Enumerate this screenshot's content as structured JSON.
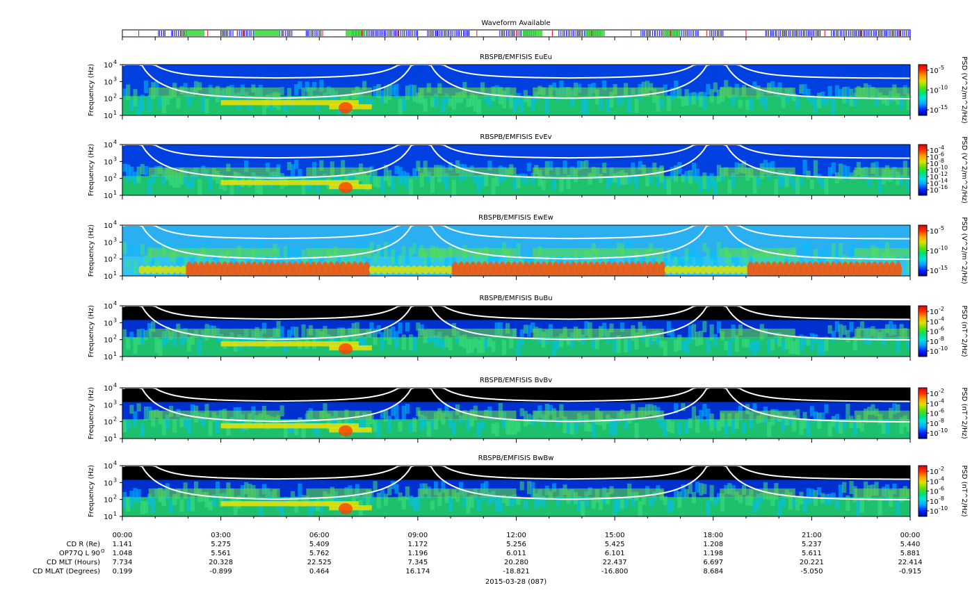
{
  "waveform": {
    "title": "Waveform Available",
    "colors": {
      "burst": "#0000ff",
      "survey": "#33dd33",
      "marker": "#ff0000"
    },
    "blue_segments_hours": [
      [
        1.1,
        1.3
      ],
      [
        1.5,
        2.0
      ],
      [
        3.0,
        3.4
      ],
      [
        3.5,
        4.0
      ],
      [
        4.8,
        5.2
      ],
      [
        5.6,
        6.1
      ],
      [
        7.0,
        9.0
      ],
      [
        9.3,
        10.6
      ],
      [
        11.5,
        12.6
      ],
      [
        13.3,
        14.6
      ],
      [
        15.8,
        17.6
      ],
      [
        17.9,
        18.3
      ],
      [
        19.6,
        21.3
      ],
      [
        21.6,
        24.0
      ]
    ],
    "green_segments_hours": [
      [
        1.9,
        2.5
      ],
      [
        4.0,
        4.8
      ],
      [
        6.8,
        7.4
      ],
      [
        12.2,
        12.8
      ],
      [
        14.1,
        14.7
      ],
      [
        16.5,
        17.0
      ]
    ],
    "marker_hours": [
      0.5,
      1.6,
      2.6,
      3.7,
      4.9,
      6.1,
      7.3,
      8.4,
      9.6,
      10.8,
      12.0,
      13.1,
      14.3,
      15.5,
      16.7,
      17.8,
      19.0,
      20.2,
      21.4,
      22.5,
      23.7
    ]
  },
  "chart_data": {
    "type": "heatmap",
    "date_label": "2015-03-28 (087)",
    "x_range_hours": [
      0,
      24
    ],
    "x_ticks": [
      "00:00",
      "03:00",
      "06:00",
      "09:00",
      "12:00",
      "15:00",
      "18:00",
      "21:00",
      "00:00"
    ],
    "ylabel": "Frequency (Hz)",
    "y_ticks": [
      "10",
      "10",
      "10",
      "10"
    ],
    "y_tick_exps": [
      "1",
      "2",
      "3",
      "4"
    ],
    "ylim": [
      10,
      10000
    ],
    "y_scale": "log",
    "panels": [
      {
        "title": "RBSPB/EMFISIS  EuEu",
        "cbar_label": "PSD (V^2/m^2/Hz)",
        "cbar_ticks": [
          "10",
          "10",
          "10"
        ],
        "cbar_exps": [
          "-5",
          "-10",
          "-15"
        ],
        "bg": "#0040e0",
        "dark_top": false,
        "banded": false
      },
      {
        "title": "RBSPB/EMFISIS  EvEv",
        "cbar_label": "PSD (V^2/m^2/Hz)",
        "cbar_ticks": [
          "10",
          "10",
          "10",
          "10",
          "10",
          "10",
          "10"
        ],
        "cbar_exps": [
          "-4",
          "-6",
          "-8",
          "-10",
          "-12",
          "-14",
          "-16"
        ],
        "bg": "#0040e0",
        "dark_top": false,
        "banded": false
      },
      {
        "title": "RBSPB/EMFISIS  EwEw",
        "cbar_label": "PSD (V^2/m^2/Hz)",
        "cbar_ticks": [
          "10",
          "10",
          "10"
        ],
        "cbar_exps": [
          "-5",
          "-10",
          "-15"
        ],
        "bg": "#2ab0f0",
        "dark_top": false,
        "banded": true
      },
      {
        "title": "RBSPB/EMFISIS  BuBu",
        "cbar_label": "PSD (nT^2/Hz)",
        "cbar_ticks": [
          "10",
          "10",
          "10",
          "10",
          "10"
        ],
        "cbar_exps": [
          "-2",
          "-4",
          "-6",
          "-8",
          "-10"
        ],
        "bg": "#0030d0",
        "dark_top": true,
        "banded": false
      },
      {
        "title": "RBSPB/EMFISIS  BvBv",
        "cbar_label": "PSD (nT^2/Hz)",
        "cbar_ticks": [
          "10",
          "10",
          "10",
          "10",
          "10"
        ],
        "cbar_exps": [
          "-2",
          "-4",
          "-6",
          "-8",
          "-10"
        ],
        "bg": "#0030d0",
        "dark_top": true,
        "banded": false
      },
      {
        "title": "RBSPB/EMFISIS  BwBw",
        "cbar_label": "PSD (nT^2/Hz)",
        "cbar_ticks": [
          "10",
          "10",
          "10",
          "10",
          "10"
        ],
        "cbar_exps": [
          "-2",
          "-4",
          "-6",
          "-8",
          "-10"
        ],
        "bg": "#0030d0",
        "dark_top": true,
        "banded": false
      }
    ],
    "ephemeris": {
      "row_labels": [
        "CD R (Re)",
        "OP77Q L 90",
        "CD MLT (Hours)",
        "CD MLAT (Degrees)"
      ],
      "row_label_sup": [
        "",
        "O",
        "",
        ""
      ],
      "rows": [
        [
          "1.141",
          "5.275",
          "5.409",
          "1.172",
          "5.256",
          "5.425",
          "1.208",
          "5.237",
          "5.440"
        ],
        [
          "1.048",
          "5.561",
          "5.762",
          "1.196",
          "6.011",
          "6.101",
          "1.198",
          "5.611",
          "5.881"
        ],
        [
          "7.734",
          "20.328",
          "22.525",
          "7.345",
          "20.280",
          "22.437",
          "6.697",
          "20.221",
          "22.414"
        ],
        [
          "0.199",
          "-0.899",
          "0.464",
          "16.174",
          "-18.821",
          "-16.800",
          "8.684",
          "-5.050",
          "-0.915"
        ]
      ]
    },
    "colorbar_colors": [
      "#0000b0",
      "#0020ff",
      "#00a0ff",
      "#00e0e0",
      "#00e070",
      "#60e000",
      "#e0e000",
      "#ffa000",
      "#ff3000",
      "#e00000"
    ]
  }
}
